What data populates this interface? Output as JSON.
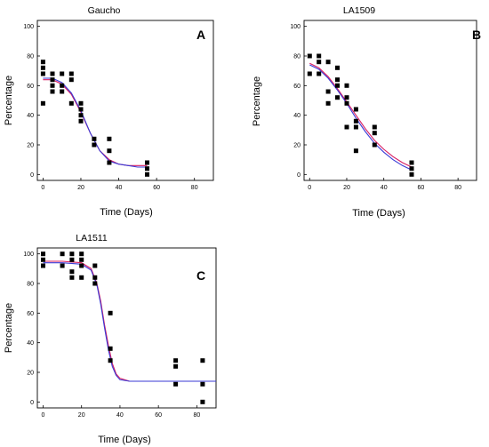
{
  "chart_data": [
    {
      "type": "scatter",
      "title": "Gaucho",
      "panel_label": "A",
      "xlabel": "Time (Days)",
      "ylabel": "Percentage",
      "xlim": [
        -3,
        90
      ],
      "ylim": [
        -4,
        104
      ],
      "xticks": [
        0,
        20,
        40,
        60,
        80
      ],
      "yticks": [
        0,
        20,
        40,
        60,
        80,
        100
      ],
      "points": [
        [
          0,
          48
        ],
        [
          0,
          68
        ],
        [
          0,
          72
        ],
        [
          0,
          76
        ],
        [
          5,
          56
        ],
        [
          5,
          60
        ],
        [
          5,
          64
        ],
        [
          5,
          68
        ],
        [
          10,
          56
        ],
        [
          10,
          60
        ],
        [
          10,
          68
        ],
        [
          15,
          48
        ],
        [
          15,
          64
        ],
        [
          15,
          68
        ],
        [
          20,
          36
        ],
        [
          20,
          40
        ],
        [
          20,
          44
        ],
        [
          20,
          48
        ],
        [
          27,
          20
        ],
        [
          27,
          24
        ],
        [
          35,
          8
        ],
        [
          35,
          16
        ],
        [
          35,
          24
        ],
        [
          55,
          0
        ],
        [
          55,
          4
        ],
        [
          55,
          8
        ]
      ],
      "series": [
        {
          "kind": "fit",
          "color": "#d81b60",
          "values": [
            [
              0,
              64
            ],
            [
              5,
              64
            ],
            [
              10,
              61
            ],
            [
              15,
              54
            ],
            [
              20,
              42
            ],
            [
              25,
              28
            ],
            [
              30,
              16
            ],
            [
              35,
              10
            ],
            [
              40,
              7
            ],
            [
              45,
              6
            ],
            [
              50,
              6
            ],
            [
              55,
              6
            ]
          ]
        },
        {
          "kind": "fit",
          "color": "#3a3ad6",
          "values": [
            [
              0,
              65
            ],
            [
              5,
              65
            ],
            [
              10,
              62
            ],
            [
              15,
              55
            ],
            [
              20,
              43
            ],
            [
              25,
              28
            ],
            [
              30,
              16
            ],
            [
              35,
              9
            ],
            [
              40,
              7
            ],
            [
              45,
              6
            ],
            [
              50,
              5
            ],
            [
              55,
              5
            ]
          ]
        }
      ]
    },
    {
      "type": "scatter",
      "title": "LA1509",
      "panel_label": "B",
      "xlabel": "Time (Days)",
      "ylabel": "Percentage",
      "xlim": [
        -3,
        90
      ],
      "ylim": [
        -4,
        104
      ],
      "xticks": [
        0,
        20,
        40,
        60,
        80
      ],
      "yticks": [
        0,
        20,
        40,
        60,
        80,
        100
      ],
      "points": [
        [
          0,
          68
        ],
        [
          0,
          80
        ],
        [
          5,
          68
        ],
        [
          5,
          76
        ],
        [
          5,
          80
        ],
        [
          10,
          48
        ],
        [
          10,
          56
        ],
        [
          10,
          76
        ],
        [
          15,
          52
        ],
        [
          15,
          60
        ],
        [
          15,
          64
        ],
        [
          15,
          72
        ],
        [
          20,
          32
        ],
        [
          20,
          48
        ],
        [
          20,
          52
        ],
        [
          20,
          60
        ],
        [
          25,
          16
        ],
        [
          25,
          32
        ],
        [
          25,
          36
        ],
        [
          25,
          44
        ],
        [
          35,
          20
        ],
        [
          35,
          28
        ],
        [
          35,
          32
        ],
        [
          55,
          0
        ],
        [
          55,
          4
        ],
        [
          55,
          8
        ]
      ],
      "series": [
        {
          "kind": "fit",
          "color": "#d81b60",
          "values": [
            [
              0,
              75
            ],
            [
              5,
              72
            ],
            [
              10,
              66
            ],
            [
              15,
              58
            ],
            [
              20,
              49
            ],
            [
              25,
              40
            ],
            [
              30,
              31
            ],
            [
              35,
              23
            ],
            [
              40,
              17
            ],
            [
              45,
              12
            ],
            [
              50,
              8
            ],
            [
              55,
              5
            ]
          ]
        },
        {
          "kind": "fit",
          "color": "#3a3ad6",
          "values": [
            [
              0,
              74
            ],
            [
              5,
              71
            ],
            [
              10,
              65
            ],
            [
              15,
              57
            ],
            [
              20,
              48
            ],
            [
              25,
              38
            ],
            [
              30,
              29
            ],
            [
              35,
              21
            ],
            [
              40,
              15
            ],
            [
              45,
              10
            ],
            [
              50,
              6
            ],
            [
              55,
              3
            ]
          ]
        }
      ]
    },
    {
      "type": "scatter",
      "title": "LA1511",
      "panel_label": "C",
      "xlabel": "Time (Days)",
      "ylabel": "Percentage",
      "xlim": [
        -3,
        90
      ],
      "ylim": [
        -4,
        104
      ],
      "xticks": [
        0,
        20,
        40,
        60,
        80
      ],
      "yticks": [
        0,
        20,
        40,
        60,
        80,
        100
      ],
      "points": [
        [
          0,
          92
        ],
        [
          0,
          96
        ],
        [
          0,
          100
        ],
        [
          10,
          92
        ],
        [
          10,
          100
        ],
        [
          15,
          84
        ],
        [
          15,
          88
        ],
        [
          15,
          96
        ],
        [
          15,
          100
        ],
        [
          20,
          84
        ],
        [
          20,
          92
        ],
        [
          20,
          96
        ],
        [
          20,
          100
        ],
        [
          27,
          80
        ],
        [
          27,
          84
        ],
        [
          27,
          92
        ],
        [
          35,
          28
        ],
        [
          35,
          36
        ],
        [
          35,
          60
        ],
        [
          69,
          12
        ],
        [
          69,
          24
        ],
        [
          69,
          28
        ],
        [
          83,
          0
        ],
        [
          83,
          12
        ],
        [
          83,
          28
        ]
      ],
      "series": [
        {
          "kind": "fit",
          "color": "#d81b60",
          "values": [
            [
              0,
              95
            ],
            [
              10,
              95
            ],
            [
              20,
              94
            ],
            [
              25,
              90
            ],
            [
              28,
              80
            ],
            [
              30,
              68
            ],
            [
              32,
              52
            ],
            [
              34,
              38
            ],
            [
              36,
              26
            ],
            [
              38,
              19
            ],
            [
              40,
              16
            ],
            [
              45,
              14
            ],
            [
              50,
              14
            ],
            [
              60,
              14
            ],
            [
              70,
              14
            ],
            [
              80,
              14
            ],
            [
              90,
              14
            ]
          ]
        },
        {
          "kind": "fit",
          "color": "#3a3ad6",
          "values": [
            [
              0,
              94
            ],
            [
              10,
              94
            ],
            [
              20,
              93
            ],
            [
              25,
              89
            ],
            [
              28,
              79
            ],
            [
              30,
              66
            ],
            [
              32,
              50
            ],
            [
              34,
              35
            ],
            [
              36,
              24
            ],
            [
              38,
              18
            ],
            [
              40,
              15
            ],
            [
              45,
              14
            ],
            [
              50,
              14
            ],
            [
              60,
              14
            ],
            [
              70,
              14
            ],
            [
              80,
              14
            ],
            [
              90,
              14
            ]
          ]
        }
      ]
    }
  ]
}
